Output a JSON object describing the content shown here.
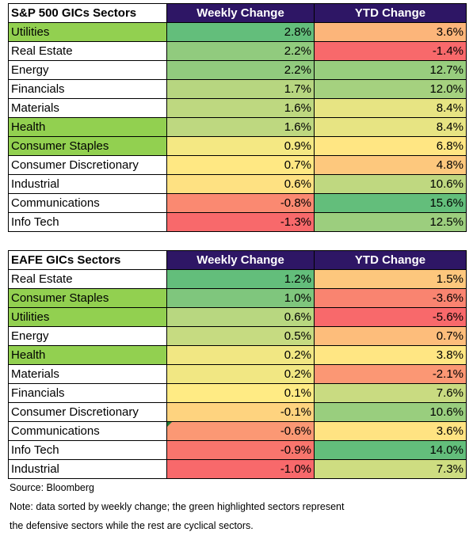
{
  "tables": [
    {
      "title": "S&P 500 GICs Sectors",
      "col_weekly": "Weekly Change",
      "col_ytd": "YTD Change",
      "rows": [
        {
          "sector": "Utilities",
          "weekly": "2.8%",
          "ytd": "3.6%",
          "defensive": true
        },
        {
          "sector": "Real Estate",
          "weekly": "2.2%",
          "ytd": "-1.4%",
          "defensive": false
        },
        {
          "sector": "Energy",
          "weekly": "2.2%",
          "ytd": "12.7%",
          "defensive": false
        },
        {
          "sector": "Financials",
          "weekly": "1.7%",
          "ytd": "12.0%",
          "defensive": false
        },
        {
          "sector": "Materials",
          "weekly": "1.6%",
          "ytd": "8.4%",
          "defensive": false
        },
        {
          "sector": "Health",
          "weekly": "1.6%",
          "ytd": "8.4%",
          "defensive": true
        },
        {
          "sector": "Consumer Staples",
          "weekly": "0.9%",
          "ytd": "6.8%",
          "defensive": true
        },
        {
          "sector": "Consumer Discretionary",
          "weekly": "0.7%",
          "ytd": "4.8%",
          "defensive": false
        },
        {
          "sector": "Industrial",
          "weekly": "0.6%",
          "ytd": "10.6%",
          "defensive": false
        },
        {
          "sector": "Communications",
          "weekly": "-0.8%",
          "ytd": "15.6%",
          "defensive": false
        },
        {
          "sector": "Info Tech",
          "weekly": "-1.3%",
          "ytd": "12.5%",
          "defensive": false
        }
      ]
    },
    {
      "title": "EAFE GICs Sectors",
      "col_weekly": "Weekly Change",
      "col_ytd": "YTD Change",
      "rows": [
        {
          "sector": "Real Estate",
          "weekly": "1.2%",
          "ytd": "1.5%",
          "defensive": false
        },
        {
          "sector": "Consumer Staples",
          "weekly": "1.0%",
          "ytd": "-3.6%",
          "defensive": true
        },
        {
          "sector": "Utilities",
          "weekly": "0.6%",
          "ytd": "-5.6%",
          "defensive": true
        },
        {
          "sector": "Energy",
          "weekly": "0.5%",
          "ytd": "0.7%",
          "defensive": false
        },
        {
          "sector": "Health",
          "weekly": "0.2%",
          "ytd": "3.8%",
          "defensive": true
        },
        {
          "sector": "Materials",
          "weekly": "0.2%",
          "ytd": "-2.1%",
          "defensive": false
        },
        {
          "sector": "Financials",
          "weekly": "0.1%",
          "ytd": "7.6%",
          "defensive": false
        },
        {
          "sector": "Consumer Discretionary",
          "weekly": "-0.1%",
          "ytd": "10.6%",
          "defensive": false
        },
        {
          "sector": "Communications",
          "weekly": "-0.6%",
          "ytd": "3.6%",
          "defensive": false
        },
        {
          "sector": "Info Tech",
          "weekly": "-0.9%",
          "ytd": "14.0%",
          "defensive": false
        },
        {
          "sector": "Industrial",
          "weekly": "-1.0%",
          "ytd": "7.3%",
          "defensive": false
        }
      ]
    }
  ],
  "notes": {
    "source": "Source: Bloomberg",
    "line1": "Note: data sorted by weekly change; the green highlighted sectors represent",
    "line2": "the defensive sectors while the rest are cyclical sectors."
  },
  "colors": {
    "header_bg": "#2e1665",
    "defensive_highlight": "#92d050",
    "scale_low": "#f8696b",
    "scale_mid": "#ffeb84",
    "scale_high": "#63be7b"
  },
  "chart_data": [
    {
      "type": "table",
      "title": "S&P 500 GICs Sectors",
      "columns": [
        "Weekly Change",
        "YTD Change"
      ],
      "categories": [
        "Utilities",
        "Real Estate",
        "Energy",
        "Financials",
        "Materials",
        "Health",
        "Consumer Staples",
        "Consumer Discretionary",
        "Industrial",
        "Communications",
        "Info Tech"
      ],
      "series": [
        {
          "name": "Weekly Change",
          "values": [
            2.8,
            2.2,
            2.2,
            1.7,
            1.6,
            1.6,
            0.9,
            0.7,
            0.6,
            -0.8,
            -1.3
          ]
        },
        {
          "name": "YTD Change",
          "values": [
            3.6,
            -1.4,
            12.7,
            12.0,
            8.4,
            8.4,
            6.8,
            4.8,
            10.6,
            15.6,
            12.5
          ]
        }
      ]
    },
    {
      "type": "table",
      "title": "EAFE GICs Sectors",
      "columns": [
        "Weekly Change",
        "YTD Change"
      ],
      "categories": [
        "Real Estate",
        "Consumer Staples",
        "Utilities",
        "Energy",
        "Health",
        "Materials",
        "Financials",
        "Consumer Discretionary",
        "Communications",
        "Info Tech",
        "Industrial"
      ],
      "series": [
        {
          "name": "Weekly Change",
          "values": [
            1.2,
            1.0,
            0.6,
            0.5,
            0.2,
            0.2,
            0.1,
            -0.1,
            -0.6,
            -0.9,
            -1.0
          ]
        },
        {
          "name": "YTD Change",
          "values": [
            1.5,
            -3.6,
            -5.6,
            0.7,
            3.8,
            -2.1,
            7.6,
            10.6,
            3.6,
            14.0,
            7.3
          ]
        }
      ]
    }
  ]
}
